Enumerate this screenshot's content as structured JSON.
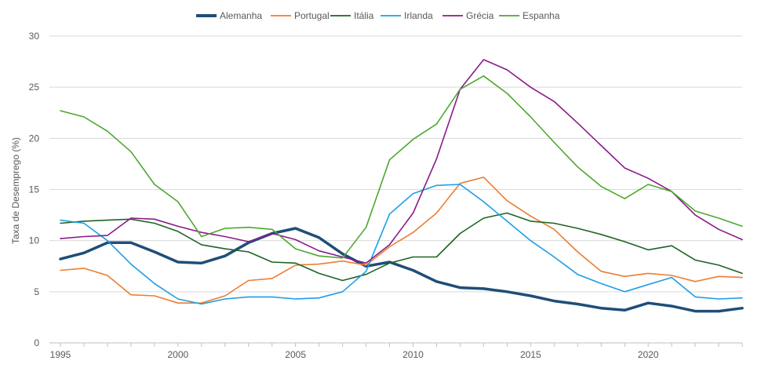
{
  "chart_data": {
    "type": "line",
    "title": "",
    "xlabel": "",
    "ylabel": "Taxa de Desemprego (%)",
    "xlim": [
      1995,
      2024
    ],
    "ylim": [
      0,
      30
    ],
    "yticks": [
      0,
      5,
      10,
      15,
      20,
      25,
      30
    ],
    "xticks": [
      1995,
      2000,
      2005,
      2010,
      2015,
      2020
    ],
    "grid": "horizontal",
    "legend_position": "top",
    "x": [
      1995,
      1996,
      1997,
      1998,
      1999,
      2000,
      2001,
      2002,
      2003,
      2004,
      2005,
      2006,
      2007,
      2008,
      2009,
      2010,
      2011,
      2012,
      2013,
      2014,
      2015,
      2016,
      2017,
      2018,
      2019,
      2020,
      2021,
      2022,
      2023,
      2024
    ],
    "series": [
      {
        "name": "Alemanha",
        "color": "#1f4e79",
        "width": 3.5,
        "values": [
          8.2,
          8.8,
          9.8,
          9.8,
          8.9,
          7.9,
          7.8,
          8.5,
          9.8,
          10.7,
          11.2,
          10.3,
          8.7,
          7.5,
          7.9,
          7.1,
          6.0,
          5.4,
          5.3,
          5.0,
          4.6,
          4.1,
          3.8,
          3.4,
          3.2,
          3.9,
          3.6,
          3.1,
          3.1,
          3.4
        ]
      },
      {
        "name": "Portugal",
        "color": "#ed7d31",
        "width": 1.6,
        "values": [
          7.1,
          7.3,
          6.6,
          4.7,
          4.6,
          3.9,
          3.9,
          4.6,
          6.1,
          6.3,
          7.6,
          7.7,
          8.0,
          7.6,
          9.4,
          10.8,
          12.7,
          15.6,
          16.2,
          13.9,
          12.4,
          11.1,
          8.9,
          7.0,
          6.5,
          6.8,
          6.6,
          6.0,
          6.5,
          6.4
        ]
      },
      {
        "name": "Itália",
        "color": "#1e6423",
        "width": 1.6,
        "values": [
          11.7,
          11.9,
          12.0,
          12.1,
          11.7,
          10.9,
          9.6,
          9.2,
          8.9,
          7.9,
          7.8,
          6.8,
          6.1,
          6.7,
          7.8,
          8.4,
          8.4,
          10.7,
          12.2,
          12.7,
          11.9,
          11.7,
          11.2,
          10.6,
          9.9,
          9.1,
          9.5,
          8.1,
          7.6,
          6.8
        ]
      },
      {
        "name": "Irlanda",
        "color": "#1e9ee6",
        "width": 1.6,
        "values": [
          12.0,
          11.7,
          10.0,
          7.7,
          5.8,
          4.3,
          3.8,
          4.3,
          4.5,
          4.5,
          4.3,
          4.4,
          5.0,
          7.0,
          12.6,
          14.6,
          15.4,
          15.5,
          13.8,
          11.9,
          10.0,
          8.4,
          6.7,
          5.8,
          5.0,
          5.7,
          6.4,
          4.5,
          4.3,
          4.4
        ]
      },
      {
        "name": "Grécia",
        "color": "#8b1a89",
        "width": 1.6,
        "values": [
          10.2,
          10.4,
          10.5,
          12.2,
          12.1,
          11.4,
          10.8,
          10.4,
          9.9,
          10.7,
          10.1,
          9.0,
          8.4,
          7.8,
          9.6,
          12.7,
          18.0,
          24.8,
          27.7,
          26.7,
          25.0,
          23.6,
          21.5,
          19.3,
          17.1,
          16.1,
          14.8,
          12.5,
          11.1,
          10.1
        ]
      },
      {
        "name": "Espanha",
        "color": "#4ea72e",
        "width": 1.6,
        "values": [
          22.7,
          22.1,
          20.7,
          18.7,
          15.5,
          13.8,
          10.4,
          11.2,
          11.3,
          11.1,
          9.2,
          8.5,
          8.3,
          11.3,
          17.9,
          19.9,
          21.4,
          24.8,
          26.1,
          24.4,
          22.1,
          19.6,
          17.2,
          15.3,
          14.1,
          15.5,
          14.8,
          12.9,
          12.2,
          11.4
        ]
      }
    ]
  }
}
